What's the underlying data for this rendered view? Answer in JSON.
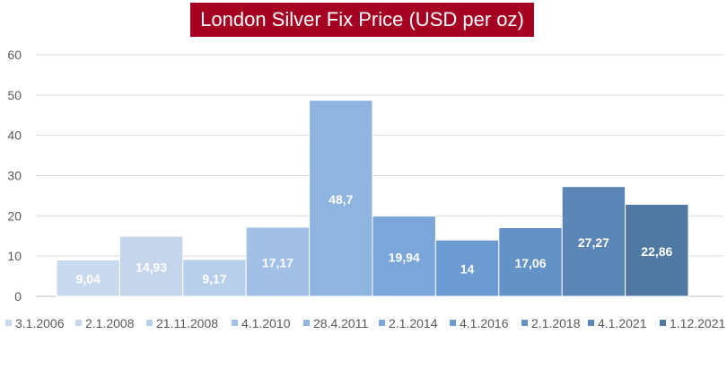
{
  "chart_data": {
    "type": "bar",
    "title": "London Silver Fix Price (USD per oz)",
    "xlabel": "",
    "ylabel": "",
    "ylim": [
      0,
      60
    ],
    "yticks": [
      0,
      10,
      20,
      30,
      40,
      50,
      60
    ],
    "grid": true,
    "legend_position": "bottom",
    "series": [
      {
        "name": "3.1.2006",
        "value": 9.04,
        "label": "9,04",
        "color": "#c9daee"
      },
      {
        "name": "2.1.2008",
        "value": 14.93,
        "label": "14,93",
        "color": "#c5d6ec"
      },
      {
        "name": "21.11.2008",
        "value": 9.17,
        "label": "9,17",
        "color": "#b8cfe9"
      },
      {
        "name": "4.1.2010",
        "value": 17.17,
        "label": "17,17",
        "color": "#a2c0e5"
      },
      {
        "name": "28.4.2011",
        "value": 48.7,
        "label": "48,7",
        "color": "#8fb4e0"
      },
      {
        "name": "2.1.2014",
        "value": 19.94,
        "label": "19,94",
        "color": "#7aa6d9"
      },
      {
        "name": "4.1.2016",
        "value": 14,
        "label": "14",
        "color": "#6b9bd1"
      },
      {
        "name": "2.1.2018",
        "value": 17.06,
        "label": "17,06",
        "color": "#6492c6"
      },
      {
        "name": "4.1.2021",
        "value": 27.27,
        "label": "27,27",
        "color": "#5b86b6"
      },
      {
        "name": "1.12.2021",
        "value": 22.86,
        "label": "22,86",
        "color": "#4f79a3"
      }
    ]
  }
}
